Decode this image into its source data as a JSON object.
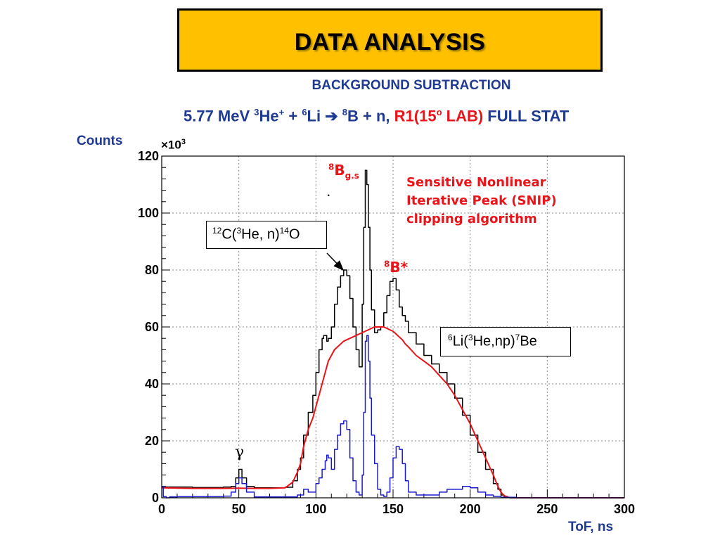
{
  "slide": {
    "title": "DATA ANALYSIS",
    "subtitle": "BACKGROUND SUBTRACTION",
    "reaction": {
      "energy": "5.77 MeV ",
      "he_mass": "3",
      "he": "He",
      "he_charge": "+",
      "plus1": " + ",
      "li_mass": "6",
      "li": "Li",
      "arrow": " ➔ ",
      "b_mass": "8",
      "b": "B + n, ",
      "r1": "R1(15",
      "deg": "o",
      "lab": " LAB)",
      "full_stat": " FULL STAT"
    }
  },
  "colors": {
    "title_fill": "#FFC000",
    "title_text": "#000000",
    "heading_blue": "#1F3A93",
    "accent_red": "#E8141A",
    "spectrum_total": "#000000",
    "background_fit": "#E8141A",
    "subtracted": "#1A1AD0"
  },
  "chart_data": {
    "type": "line",
    "ylabel": "Counts",
    "xlabel": "ToF, ns",
    "multiplier": {
      "base": "×10",
      "exp": "3"
    },
    "xlim": [
      0,
      300
    ],
    "ylim": [
      0,
      120
    ],
    "x_ticks": [
      0,
      50,
      100,
      150,
      200,
      250,
      300
    ],
    "y_ticks": [
      0,
      20,
      40,
      60,
      80,
      100,
      120
    ],
    "x_tick_labels": [
      "0",
      "50",
      "100",
      "150",
      "200",
      "250",
      "300"
    ],
    "y_tick_labels": [
      "0",
      "20",
      "40",
      "60",
      "80",
      "100",
      "120"
    ],
    "grid": true,
    "series": [
      {
        "key": "total",
        "x": [
          0,
          20,
          40,
          45,
          48,
          50,
          52,
          55,
          60,
          70,
          80,
          85,
          88,
          90,
          92,
          95,
          98,
          100,
          102,
          104,
          105,
          107,
          108,
          110,
          112,
          114,
          116,
          118,
          120,
          122,
          124,
          126,
          128,
          130,
          131,
          132,
          133,
          134,
          135,
          136,
          138,
          140,
          142,
          144,
          146,
          148,
          150,
          152,
          154,
          156,
          158,
          160,
          165,
          170,
          175,
          180,
          185,
          190,
          195,
          200,
          205,
          210,
          215,
          218,
          220,
          222,
          224,
          226,
          228,
          230,
          240,
          260,
          280,
          300
        ],
        "y": [
          3.8,
          3.6,
          3.8,
          4,
          7,
          10,
          7,
          4,
          3.5,
          3.5,
          3.7,
          6,
          10,
          14,
          22,
          30,
          36,
          44,
          52,
          56,
          57,
          55,
          56,
          60,
          68,
          74,
          78,
          80,
          78,
          70,
          60,
          52,
          46,
          68,
          95,
          115,
          110,
          95,
          80,
          66,
          58,
          59,
          60,
          65,
          71,
          76,
          77,
          73,
          67,
          64,
          62,
          58,
          54,
          50,
          47,
          44,
          40,
          35,
          29,
          22,
          16,
          10,
          5,
          3,
          1,
          0.5,
          0.2,
          0,
          0,
          0,
          0,
          0,
          0,
          0
        ]
      },
      {
        "key": "background",
        "x": [
          0,
          20,
          40,
          50,
          60,
          70,
          80,
          85,
          88,
          90,
          92,
          95,
          98,
          100,
          102,
          104,
          106,
          108,
          110,
          112,
          114,
          116,
          118,
          120,
          122,
          124,
          126,
          128,
          130,
          132,
          134,
          136,
          138,
          140,
          142,
          144,
          146,
          148,
          150,
          152,
          154,
          156,
          158,
          160,
          165,
          170,
          175,
          180,
          185,
          190,
          195,
          200,
          205,
          210,
          215,
          218,
          220,
          222,
          224,
          226,
          228,
          230,
          240,
          260,
          280,
          300
        ],
        "y": [
          3.5,
          3.3,
          3.3,
          3.4,
          3.3,
          3.3,
          3.5,
          5.5,
          9,
          12,
          18,
          24,
          28,
          32,
          36,
          40,
          44,
          48,
          50,
          52,
          53,
          54,
          55,
          55.5,
          56,
          56.5,
          57,
          57.5,
          58,
          58.5,
          59,
          59.5,
          60,
          60,
          60,
          60,
          59.5,
          59,
          58.5,
          57.5,
          56.5,
          55.5,
          54,
          53,
          50,
          48,
          46,
          43,
          40,
          36,
          31,
          26,
          20,
          14,
          8,
          4,
          2,
          0.8,
          0.3,
          0.1,
          0,
          0,
          0,
          0,
          0,
          0
        ]
      },
      {
        "key": "subtracted",
        "x": [
          0,
          1,
          3,
          5,
          10,
          20,
          30,
          40,
          45,
          48,
          50,
          52,
          55,
          60,
          70,
          80,
          88,
          92,
          95,
          98,
          100,
          102,
          104,
          106,
          107,
          108,
          110,
          112,
          114,
          116,
          118,
          120,
          122,
          124,
          126,
          128,
          130,
          131,
          132,
          133,
          134,
          135,
          136,
          138,
          140,
          142,
          144,
          146,
          148,
          150,
          152,
          154,
          156,
          158,
          160,
          165,
          170,
          175,
          180,
          185,
          190,
          195,
          200,
          205,
          210,
          215,
          220,
          230,
          240,
          260,
          280,
          300
        ],
        "y": [
          4,
          0.4,
          0,
          0.3,
          0.4,
          0.4,
          0.4,
          0.6,
          2,
          5,
          7,
          5,
          2,
          0.3,
          0.3,
          0.3,
          1,
          3,
          2,
          2,
          5,
          7,
          10,
          13,
          15,
          14,
          10,
          17,
          22,
          26,
          27,
          24,
          14,
          6,
          2,
          1,
          8,
          30,
          55,
          57,
          48,
          35,
          22,
          12,
          3,
          1,
          0.5,
          2,
          7,
          14,
          18,
          17,
          12,
          6,
          2,
          1,
          1,
          1,
          2,
          3,
          3,
          4,
          3.5,
          2,
          1,
          0.5,
          0.2,
          0,
          0,
          0,
          0,
          0
        ]
      }
    ],
    "annotations": {
      "c12": {
        "pre": "12",
        "a": "C(",
        "b_sup": "3",
        "b": "He, n)",
        "c_sup": "14",
        "c": "O"
      },
      "li6": {
        "pre": "6",
        "a": "Li(",
        "b_sup": "3",
        "b": "He,np)",
        "c_sup": "7",
        "c": "Be"
      },
      "b8gs": {
        "sup": "8",
        "base": "B",
        "sub": "g.s",
        "dot": "."
      },
      "b8star": {
        "sup": "8",
        "base": "B*"
      },
      "snip": "Sensitive Nonlinear\nIterative Peak (SNIP)\nclipping algorithm",
      "gamma": "γ"
    }
  }
}
